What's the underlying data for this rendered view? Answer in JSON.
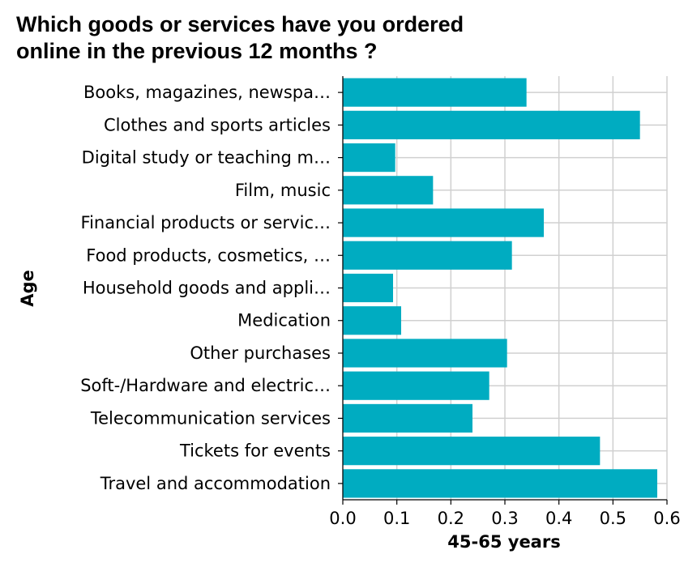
{
  "chart_data": {
    "type": "bar",
    "orientation": "horizontal",
    "title": "Which goods or services have you ordered\nonline in the previous 12 months ?",
    "xlabel": "45-65 years",
    "ylabel": "Age",
    "xlim": [
      0,
      0.6
    ],
    "xticks": [
      "0.0",
      "0.1",
      "0.2",
      "0.3",
      "0.4",
      "0.5",
      "0.6"
    ],
    "grid": true,
    "bar_color": "#00acc1",
    "categories": [
      "Books, magazines, newspa…",
      "Clothes and sports articles",
      "Digital study or teaching m…",
      "Film, music",
      "Financial products or servic…",
      "Food products, cosmetics, …",
      "Household goods and appli…",
      "Medication",
      "Other purchases",
      "Soft-/Hardware and electric…",
      "Telecommunication services",
      "Tickets for events",
      "Travel and accommodation"
    ],
    "values": [
      0.34,
      0.55,
      0.097,
      0.167,
      0.372,
      0.313,
      0.093,
      0.108,
      0.304,
      0.271,
      0.24,
      0.476,
      0.582
    ]
  }
}
